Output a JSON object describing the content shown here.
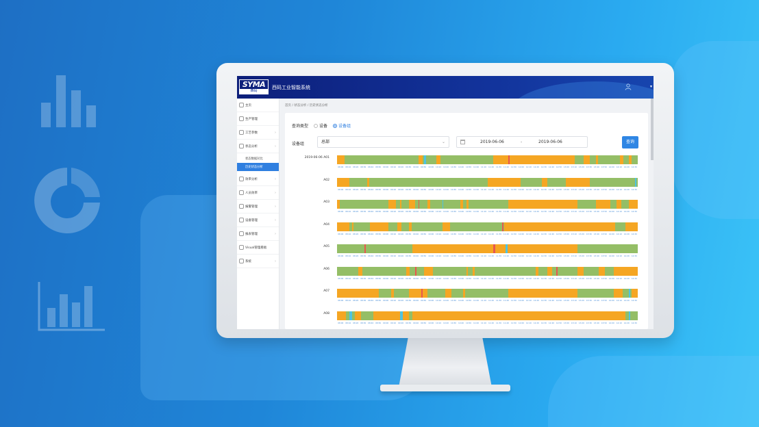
{
  "app": {
    "logo_text": "SYMA",
    "logo_sub": "西码",
    "title": "西码工业智能系统"
  },
  "sidebar": {
    "items": [
      {
        "label": "主页",
        "icon": "home-icon"
      },
      {
        "label": "生产管理",
        "icon": "production-icon"
      },
      {
        "label": "工艺参数",
        "icon": "process-icon"
      },
      {
        "label": "状态分析",
        "icon": "status-icon"
      },
      {
        "label": "效率分析",
        "icon": "efficiency-icon"
      },
      {
        "label": "人员效率",
        "icon": "staff-icon"
      },
      {
        "label": "报警管理",
        "icon": "alarm-icon"
      },
      {
        "label": "设备管理",
        "icon": "device-icon"
      },
      {
        "label": "报表管理",
        "icon": "report-icon"
      },
      {
        "label": "Visual管理看板",
        "icon": "dashboard-icon"
      },
      {
        "label": "系统",
        "icon": "system-icon"
      }
    ],
    "submenu": [
      {
        "label": "状态数据对比",
        "active": false
      },
      {
        "label": "历史状态分析",
        "active": true
      }
    ]
  },
  "breadcrumb": [
    "首页",
    "状态分析",
    "历史状态分析"
  ],
  "query": {
    "type_label": "查询类型",
    "options": [
      {
        "label": "设备",
        "checked": false
      },
      {
        "label": "设备组",
        "checked": true
      }
    ],
    "group_label": "设备组",
    "group_value": "总部",
    "date_start": "2019-06-06",
    "date_sep": "-",
    "date_end": "2019-06-06",
    "button": "查询"
  },
  "colors": {
    "running": "#94be66",
    "idle": "#f5a623",
    "alarm": "#e8584f",
    "other": "#4fc3e0"
  },
  "timeline": {
    "ticks": [
      "08:00",
      "08:10",
      "08:20",
      "08:30",
      "08:40",
      "08:50",
      "09:00",
      "09:10",
      "09:20",
      "09:30",
      "09:40",
      "09:50",
      "10:00",
      "10:10",
      "10:20",
      "10:30",
      "10:40",
      "10:50",
      "11:00",
      "11:10",
      "11:20",
      "11:30",
      "11:40",
      "11:50",
      "12:00",
      "12:10",
      "12:20",
      "12:30",
      "12:40",
      "12:50",
      "13:00",
      "13:10",
      "13:20",
      "13:30",
      "13:40",
      "13:50",
      "14:00",
      "14:10",
      "14:20",
      "14:30"
    ],
    "rows": [
      {
        "label": "2019-06-06 A01",
        "segments": [
          [
            0,
            2.5,
            "idle"
          ],
          [
            27,
            1.5,
            "idle"
          ],
          [
            29,
            0.6,
            "other"
          ],
          [
            33,
            1.5,
            "idle"
          ],
          [
            52,
            27,
            "idle"
          ],
          [
            57,
            0.4,
            "alarm"
          ],
          [
            82,
            2,
            "idle"
          ],
          [
            86,
            0.8,
            "idle"
          ],
          [
            94,
            1.2,
            "idle"
          ],
          [
            97,
            1,
            "idle"
          ]
        ]
      },
      {
        "label": "A02",
        "segments": [
          [
            0,
            4,
            "idle"
          ],
          [
            10,
            0.6,
            "idle"
          ],
          [
            50,
            11,
            "idle"
          ],
          [
            68,
            2,
            "idle"
          ],
          [
            76,
            8,
            "idle"
          ],
          [
            99,
            0.6,
            "other"
          ]
        ]
      },
      {
        "label": "A03",
        "segments": [
          [
            0,
            1,
            "idle"
          ],
          [
            17,
            2.5,
            "idle"
          ],
          [
            21,
            0.5,
            "idle"
          ],
          [
            24,
            2,
            "idle"
          ],
          [
            27,
            0.4,
            "alarm"
          ],
          [
            30,
            1,
            "idle"
          ],
          [
            35,
            0.4,
            "other"
          ],
          [
            41,
            1,
            "idle"
          ],
          [
            43,
            0.8,
            "idle"
          ],
          [
            57,
            23,
            "idle"
          ],
          [
            86,
            5,
            "idle"
          ],
          [
            93,
            1.5,
            "idle"
          ],
          [
            97,
            3,
            "idle"
          ]
        ]
      },
      {
        "label": "A04",
        "segments": [
          [
            0,
            4,
            "idle"
          ],
          [
            5,
            0.5,
            "idle"
          ],
          [
            11,
            6,
            "idle"
          ],
          [
            20,
            1.5,
            "idle"
          ],
          [
            24,
            0.8,
            "idle"
          ],
          [
            35,
            2.5,
            "idle"
          ],
          [
            55,
            0.4,
            "alarm"
          ],
          [
            55.5,
            37,
            "idle"
          ],
          [
            96,
            4,
            "idle"
          ]
        ]
      },
      {
        "label": "A05",
        "segments": [
          [
            9,
            0.6,
            "alarm"
          ],
          [
            25,
            55,
            "idle"
          ],
          [
            52,
            0.6,
            "alarm"
          ],
          [
            56,
            0.7,
            "other"
          ],
          [
            78,
            1,
            "idle"
          ]
        ]
      },
      {
        "label": "A06",
        "segments": [
          [
            7,
            1.5,
            "idle"
          ],
          [
            23,
            1.2,
            "idle"
          ],
          [
            26,
            0.5,
            "alarm"
          ],
          [
            29,
            3,
            "idle"
          ],
          [
            43,
            0.6,
            "idle"
          ],
          [
            45,
            0.8,
            "idle"
          ],
          [
            66,
            1,
            "idle"
          ],
          [
            70,
            1.5,
            "idle"
          ],
          [
            73,
            0.4,
            "alarm"
          ],
          [
            80,
            2,
            "idle"
          ],
          [
            87,
            2,
            "idle"
          ],
          [
            92,
            8,
            "idle"
          ]
        ]
      },
      {
        "label": "A07",
        "segments": [
          [
            0,
            14,
            "idle"
          ],
          [
            18,
            1,
            "idle"
          ],
          [
            24,
            6,
            "idle"
          ],
          [
            28,
            0.5,
            "alarm"
          ],
          [
            36,
            2,
            "idle"
          ],
          [
            42,
            0.5,
            "idle"
          ],
          [
            57,
            23,
            "idle"
          ],
          [
            92,
            3,
            "idle"
          ],
          [
            97,
            0.5,
            "other"
          ],
          [
            98,
            2,
            "idle"
          ]
        ]
      },
      {
        "label": "A08",
        "segments": [
          [
            0,
            3,
            "idle"
          ],
          [
            4,
            1,
            "other"
          ],
          [
            6,
            2,
            "idle"
          ],
          [
            12,
            12,
            "idle"
          ],
          [
            21,
            0.8,
            "other"
          ],
          [
            25,
            71,
            "idle"
          ],
          [
            97,
            0.6,
            "other"
          ]
        ]
      }
    ]
  }
}
